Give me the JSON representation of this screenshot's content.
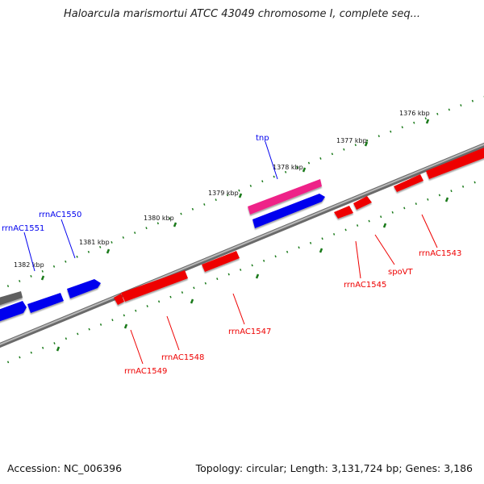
{
  "title": "Haloarcula marismortui ATCC 43049 chromosome I, complete seq...",
  "footer": {
    "accession": "Accession: NC_006396",
    "topology": "Topology: circular; Length: 3,131,724 bp; Genes: 3,186"
  },
  "colors": {
    "forward_gene": "#0000ee",
    "reverse_gene": "#ee0000",
    "transposase": "#ee2288",
    "other_gene": "#606060",
    "backbone": "#808080",
    "ticks": "#1a7a1a"
  },
  "scale": {
    "kbp_labels": [
      "1376 kbp",
      "1377 kbp",
      "1378 kbp",
      "1379 kbp",
      "1380 kbp",
      "1381 kbp",
      "1382 kbp"
    ]
  },
  "genes": {
    "forward": [
      "tnp",
      "rrnAC1550",
      "rrnAC1551"
    ],
    "reverse": [
      "rrnAC1543",
      "spoVT",
      "rrnAC1545",
      "rrnAC1547",
      "rrnAC1548",
      "rrnAC1549"
    ]
  }
}
